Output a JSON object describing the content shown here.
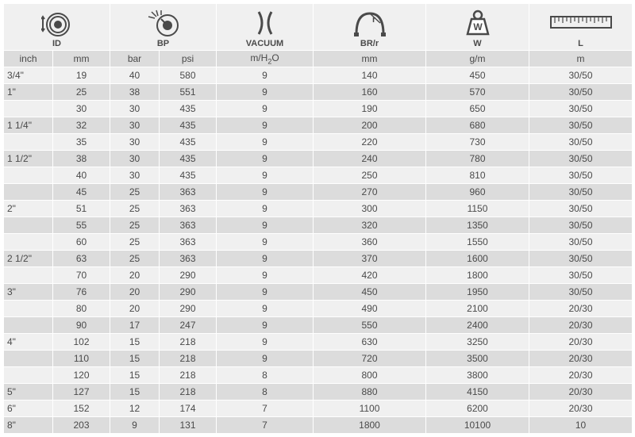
{
  "colors": {
    "row_odd": "#f0f0f0",
    "row_even": "#dcdcdc",
    "border": "#ffffff",
    "text": "#4a4a4a",
    "icon_stroke": "#4a4a4a"
  },
  "table": {
    "type": "table",
    "header_groups": [
      {
        "icon": "id",
        "label": "ID",
        "span": 2
      },
      {
        "icon": "bp",
        "label": "BP",
        "span": 2
      },
      {
        "icon": "vacuum",
        "label": "VACUUM",
        "span": 1
      },
      {
        "icon": "br",
        "label": "BR/r",
        "span": 1
      },
      {
        "icon": "weight",
        "label": "W",
        "span": 1
      },
      {
        "icon": "length",
        "label": "L",
        "span": 1
      }
    ],
    "unit_headers": [
      "inch",
      "mm",
      "bar",
      "psi",
      "m/H₂O",
      "mm",
      "g/m",
      "m"
    ],
    "columns": [
      "inch",
      "mm",
      "bar",
      "psi",
      "vac",
      "br",
      "w",
      "l"
    ],
    "rows": [
      {
        "inch": "3/4\"",
        "mm": "19",
        "bar": "40",
        "psi": "580",
        "vac": "9",
        "br": "140",
        "w": "450",
        "l": "30/50"
      },
      {
        "inch": "1\"",
        "mm": "25",
        "bar": "38",
        "psi": "551",
        "vac": "9",
        "br": "160",
        "w": "570",
        "l": "30/50"
      },
      {
        "inch": "",
        "mm": "30",
        "bar": "30",
        "psi": "435",
        "vac": "9",
        "br": "190",
        "w": "650",
        "l": "30/50"
      },
      {
        "inch": "1 1/4\"",
        "mm": "32",
        "bar": "30",
        "psi": "435",
        "vac": "9",
        "br": "200",
        "w": "680",
        "l": "30/50"
      },
      {
        "inch": "",
        "mm": "35",
        "bar": "30",
        "psi": "435",
        "vac": "9",
        "br": "220",
        "w": "730",
        "l": "30/50"
      },
      {
        "inch": "1 1/2\"",
        "mm": "38",
        "bar": "30",
        "psi": "435",
        "vac": "9",
        "br": "240",
        "w": "780",
        "l": "30/50"
      },
      {
        "inch": "",
        "mm": "40",
        "bar": "30",
        "psi": "435",
        "vac": "9",
        "br": "250",
        "w": "810",
        "l": "30/50"
      },
      {
        "inch": "",
        "mm": "45",
        "bar": "25",
        "psi": "363",
        "vac": "9",
        "br": "270",
        "w": "960",
        "l": "30/50"
      },
      {
        "inch": "2\"",
        "mm": "51",
        "bar": "25",
        "psi": "363",
        "vac": "9",
        "br": "300",
        "w": "1150",
        "l": "30/50"
      },
      {
        "inch": "",
        "mm": "55",
        "bar": "25",
        "psi": "363",
        "vac": "9",
        "br": "320",
        "w": "1350",
        "l": "30/50"
      },
      {
        "inch": "",
        "mm": "60",
        "bar": "25",
        "psi": "363",
        "vac": "9",
        "br": "360",
        "w": "1550",
        "l": "30/50"
      },
      {
        "inch": "2 1/2\"",
        "mm": "63",
        "bar": "25",
        "psi": "363",
        "vac": "9",
        "br": "370",
        "w": "1600",
        "l": "30/50"
      },
      {
        "inch": "",
        "mm": "70",
        "bar": "20",
        "psi": "290",
        "vac": "9",
        "br": "420",
        "w": "1800",
        "l": "30/50"
      },
      {
        "inch": "3\"",
        "mm": "76",
        "bar": "20",
        "psi": "290",
        "vac": "9",
        "br": "450",
        "w": "1950",
        "l": "30/50"
      },
      {
        "inch": "",
        "mm": "80",
        "bar": "20",
        "psi": "290",
        "vac": "9",
        "br": "490",
        "w": "2100",
        "l": "20/30"
      },
      {
        "inch": "",
        "mm": "90",
        "bar": "17",
        "psi": "247",
        "vac": "9",
        "br": "550",
        "w": "2400",
        "l": "20/30"
      },
      {
        "inch": "4\"",
        "mm": "102",
        "bar": "15",
        "psi": "218",
        "vac": "9",
        "br": "630",
        "w": "3250",
        "l": "20/30"
      },
      {
        "inch": "",
        "mm": "110",
        "bar": "15",
        "psi": "218",
        "vac": "9",
        "br": "720",
        "w": "3500",
        "l": "20/30"
      },
      {
        "inch": "",
        "mm": "120",
        "bar": "15",
        "psi": "218",
        "vac": "8",
        "br": "800",
        "w": "3800",
        "l": "20/30"
      },
      {
        "inch": "5\"",
        "mm": "127",
        "bar": "15",
        "psi": "218",
        "vac": "8",
        "br": "880",
        "w": "4150",
        "l": "20/30"
      },
      {
        "inch": "6\"",
        "mm": "152",
        "bar": "12",
        "psi": "174",
        "vac": "7",
        "br": "1100",
        "w": "6200",
        "l": "20/30"
      },
      {
        "inch": "8\"",
        "mm": "203",
        "bar": "9",
        "psi": "131",
        "vac": "7",
        "br": "1800",
        "w": "10100",
        "l": "10"
      }
    ]
  }
}
